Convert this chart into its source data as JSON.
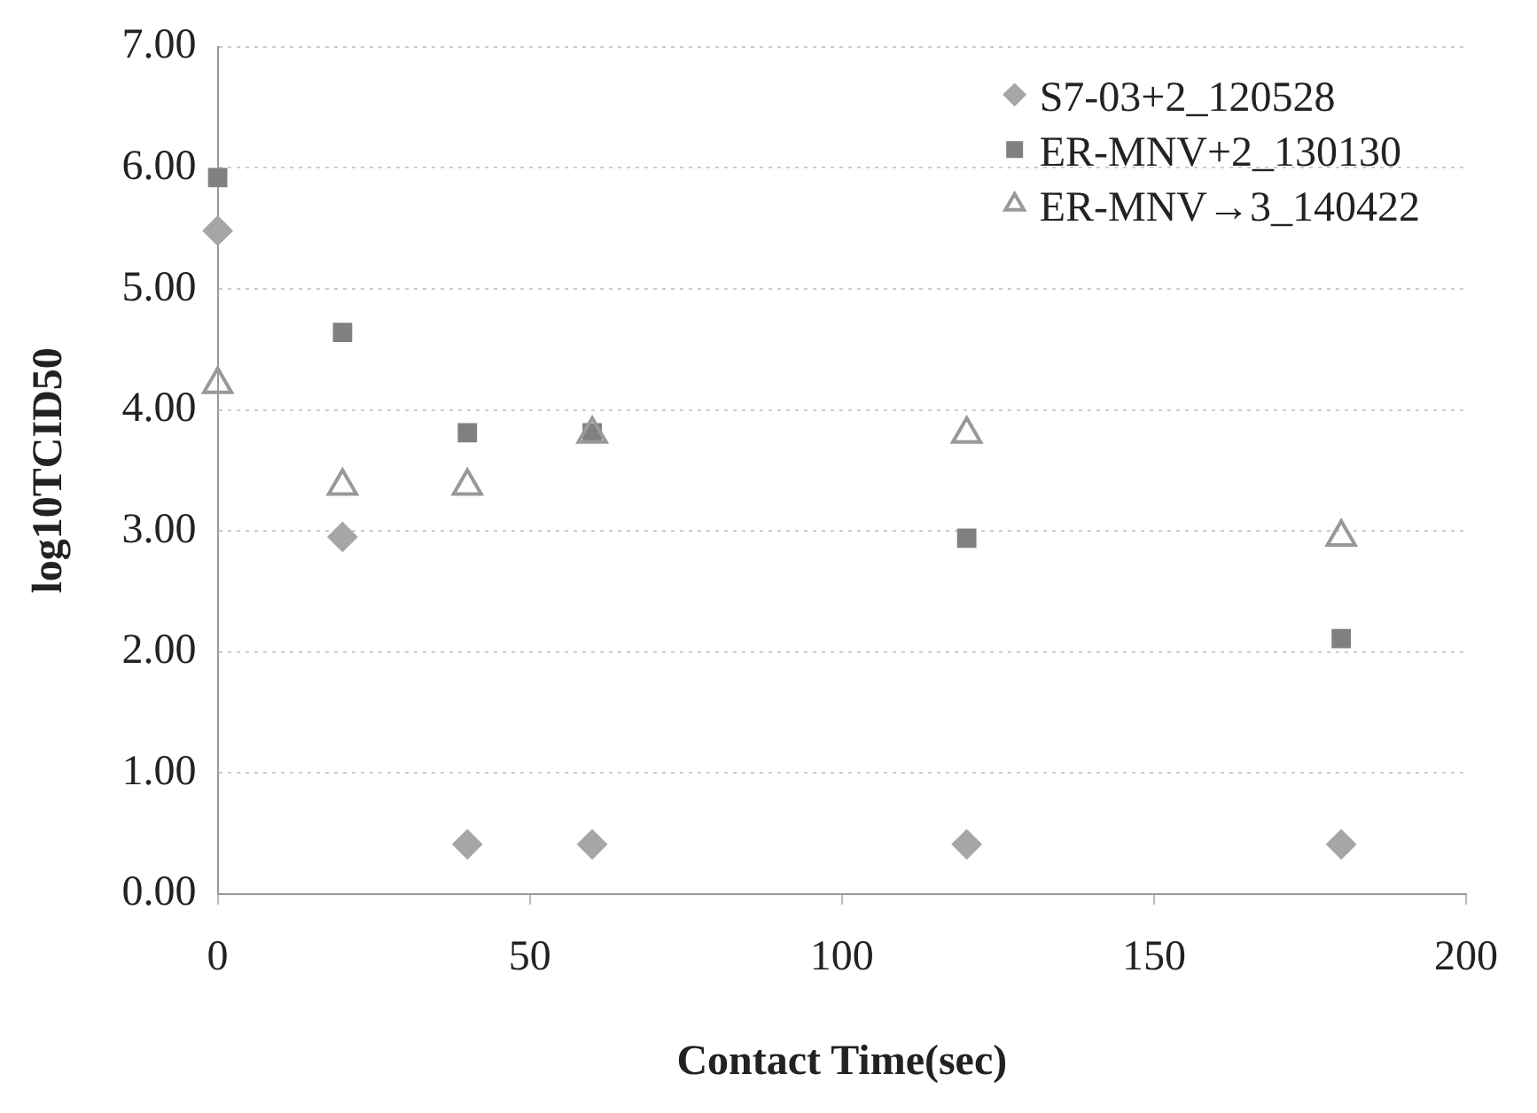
{
  "chart_data": {
    "type": "scatter",
    "xlabel": "Contact Time(sec)",
    "ylabel": "log10TCID50",
    "x": [
      0,
      20,
      40,
      60,
      120,
      180
    ],
    "series": [
      {
        "name": "S7-03+2_120528",
        "color": "#a6a6a6",
        "marker": "diamond",
        "values": [
          5.48,
          2.95,
          0.41,
          0.41,
          0.41,
          0.41
        ]
      },
      {
        "name": "ER-MNV+2_130130",
        "color": "#808080",
        "marker": "square",
        "values": [
          5.92,
          4.64,
          3.81,
          3.81,
          2.94,
          2.11
        ]
      },
      {
        "name": "ER-MNV→3_140422",
        "color": "#999999",
        "marker": "triangle",
        "values": [
          4.21,
          3.37,
          3.37,
          3.8,
          3.8,
          2.95
        ]
      }
    ],
    "xlim": [
      0,
      200
    ],
    "xticks": [
      0,
      50,
      100,
      150,
      200
    ],
    "ylim": [
      0,
      7
    ],
    "yticks": [
      {
        "value": 0,
        "label": "0.00"
      },
      {
        "value": 1,
        "label": "1.00"
      },
      {
        "value": 2,
        "label": "2.00"
      },
      {
        "value": 3,
        "label": "3.00"
      },
      {
        "value": 4,
        "label": "4.00"
      },
      {
        "value": 5,
        "label": "5.00"
      },
      {
        "value": 6,
        "label": "6.00"
      },
      {
        "value": 7,
        "label": "7.00"
      }
    ],
    "grid": "y",
    "legend": "top right"
  }
}
